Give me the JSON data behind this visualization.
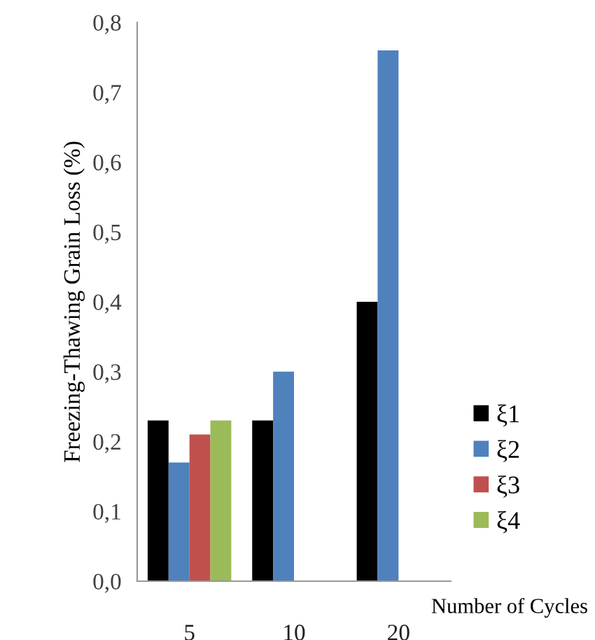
{
  "chart_data": {
    "type": "bar",
    "xlabel": "Number of Cycles",
    "ylabel": "Freezing-Thawing Grain Loss (%)",
    "categories": [
      "5",
      "10",
      "20"
    ],
    "series": [
      {
        "name": "ξ1",
        "color": "#000000",
        "values": [
          0.23,
          0.23,
          0.4
        ]
      },
      {
        "name": "ξ2",
        "color": "#4f81bd",
        "values": [
          0.17,
          0.3,
          0.76
        ]
      },
      {
        "name": "ξ3",
        "color": "#c0504d",
        "values": [
          0.21,
          null,
          null
        ]
      },
      {
        "name": "ξ4",
        "color": "#9bbb59",
        "values": [
          0.23,
          null,
          null
        ]
      }
    ],
    "ylim": [
      0,
      0.8
    ],
    "yticks": [
      {
        "value": 0,
        "label": "0,0"
      },
      {
        "value": 0.1,
        "label": "0,1"
      },
      {
        "value": 0.2,
        "label": "0,2"
      },
      {
        "value": 0.3,
        "label": "0,3"
      },
      {
        "value": 0.4,
        "label": "0,4"
      },
      {
        "value": 0.5,
        "label": "0,5"
      },
      {
        "value": 0.6,
        "label": "0,6"
      },
      {
        "value": 0.7,
        "label": "0,7"
      },
      {
        "value": 0.8,
        "label": "0,8"
      }
    ],
    "grid": false,
    "legend": "right"
  }
}
